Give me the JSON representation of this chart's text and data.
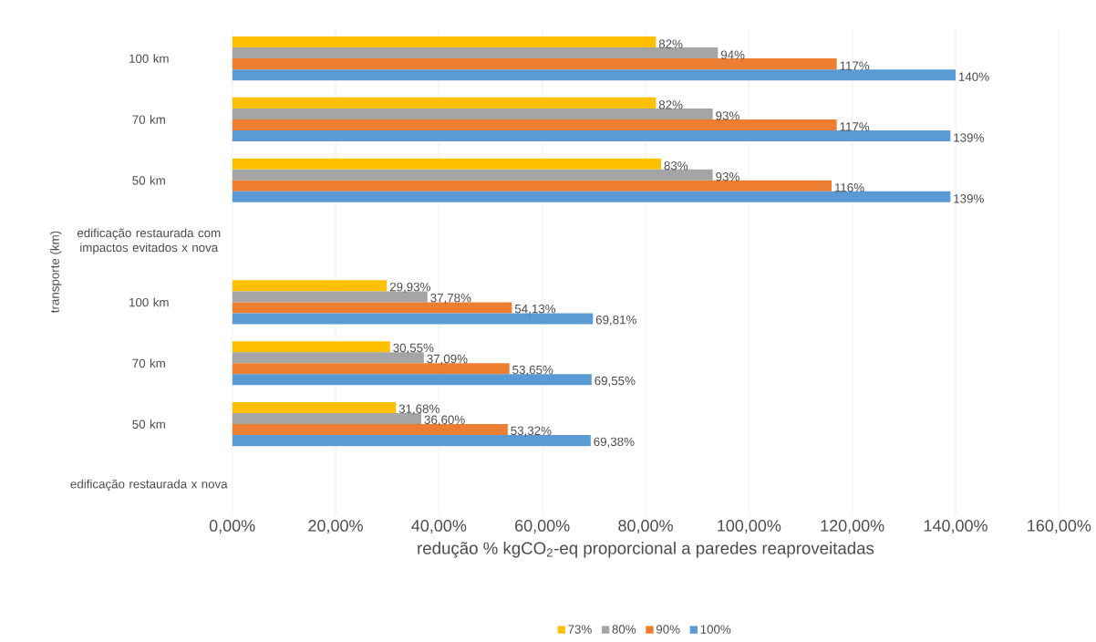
{
  "chart_data": {
    "type": "bar",
    "orientation": "horizontal",
    "categories": [
      "100 km",
      "70 km",
      "50 km",
      "edificação restaurada com impactos evitados x nova",
      "100 km",
      "70 km",
      "50 km",
      "edificação restaurada x nova"
    ],
    "series": [
      {
        "name": "73%",
        "color": "#ffc000",
        "values": [
          82,
          82,
          83,
          null,
          29.93,
          30.55,
          31.68,
          null
        ],
        "value_labels": [
          "82%",
          "82%",
          "83%",
          null,
          "29,93%",
          "30,55%",
          "31,68%",
          null
        ]
      },
      {
        "name": "80%",
        "color": "#a5a5a5",
        "values": [
          94,
          93,
          93,
          null,
          37.78,
          37.09,
          36.6,
          null
        ],
        "value_labels": [
          "94%",
          "93%",
          "93%",
          null,
          "37,78%",
          "37,09%",
          "36,60%",
          null
        ]
      },
      {
        "name": "90%",
        "color": "#ed7d31",
        "values": [
          117,
          117,
          116,
          null,
          54.13,
          53.65,
          53.32,
          null
        ],
        "value_labels": [
          "117%",
          "117%",
          "116%",
          null,
          "54,13%",
          "53,65%",
          "53,32%",
          null
        ]
      },
      {
        "name": "100%",
        "color": "#5b9bd5",
        "values": [
          140,
          139,
          139,
          null,
          69.81,
          69.55,
          69.38,
          null
        ],
        "value_labels": [
          "140%",
          "139%",
          "139%",
          null,
          "69,81%",
          "69,55%",
          "69,38%",
          null
        ]
      }
    ],
    "xlabel": "redução % kgCO$_{2}$-eq  proporcional a paredes reaproveitadas",
    "ylabel": "transporte (km)",
    "xlim": [
      0,
      160
    ],
    "xticks": [
      {
        "value": 0,
        "label": "0,00%"
      },
      {
        "value": 20,
        "label": "20,00%"
      },
      {
        "value": 40,
        "label": "40,00%"
      },
      {
        "value": 60,
        "label": "60,00%"
      },
      {
        "value": 80,
        "label": "80,00%"
      },
      {
        "value": 100,
        "label": "100,00%"
      },
      {
        "value": 120,
        "label": "120,00%"
      },
      {
        "value": 140,
        "label": "140,00%"
      },
      {
        "value": 160,
        "label": "160,00%"
      }
    ],
    "grid": "x",
    "legend": "bottom"
  }
}
